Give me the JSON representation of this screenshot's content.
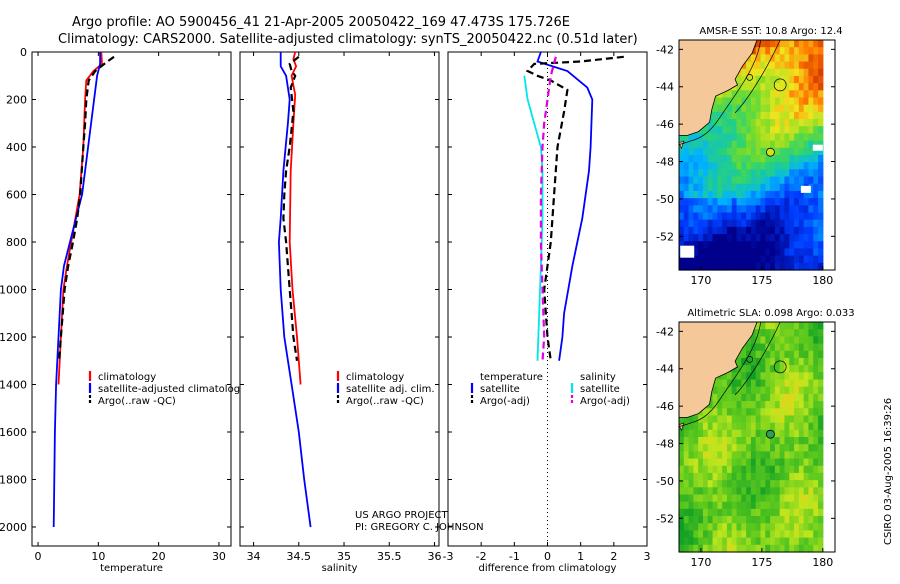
{
  "title_line1": "Argo profile: AO 5900456_41 21-Apr-2005 20050422_169 47.473S 175.726E",
  "title_line2": "Climatology: CARS2000. Satellite-adjusted climatology: synTS_20050422.nc (0.51d later)",
  "project_line1": "US ARGO PROJECT",
  "project_line2": "PI: GREGORY C. JOHNSON",
  "side_stamp": "CSIRO 03-Aug-2005 16:39:26",
  "colors": {
    "red": "#ff0000",
    "blue": "#0000ff",
    "black": "#000000",
    "cyan": "#00e5ee",
    "magenta": "#e000e0",
    "land": "#f5c89a"
  },
  "chart_data": [
    {
      "id": "temperature",
      "type": "line",
      "xlabel": "temperature",
      "ylabel": "",
      "xlim": [
        -1,
        32
      ],
      "ylim": [
        0,
        2080
      ],
      "xticks": [
        0,
        10,
        20,
        30
      ],
      "yticks": [
        0,
        200,
        400,
        600,
        800,
        1000,
        1200,
        1400,
        1600,
        1800,
        2000
      ],
      "legend": [
        "climatology",
        "satellite-adjusted climatology",
        "Argo(..raw -QC)"
      ],
      "series": [
        {
          "name": "climatology",
          "color": "red",
          "dash": false,
          "points": [
            [
              10.5,
              0
            ],
            [
              10.6,
              50
            ],
            [
              9.2,
              80
            ],
            [
              8.0,
              120
            ],
            [
              7.8,
              200
            ],
            [
              7.5,
              400
            ],
            [
              6.9,
              600
            ],
            [
              6.2,
              700
            ],
            [
              5.5,
              800
            ],
            [
              4.8,
              900
            ],
            [
              4.2,
              1000
            ],
            [
              3.8,
              1200
            ],
            [
              3.4,
              1400
            ]
          ]
        },
        {
          "name": "satellite-adjusted climatology",
          "color": "blue",
          "dash": false,
          "points": [
            [
              10.3,
              0
            ],
            [
              10.3,
              50
            ],
            [
              9.8,
              100
            ],
            [
              9.3,
              200
            ],
            [
              8.3,
              400
            ],
            [
              7.3,
              600
            ],
            [
              6.3,
              700
            ],
            [
              5.3,
              800
            ],
            [
              4.3,
              900
            ],
            [
              3.8,
              1000
            ],
            [
              3.4,
              1200
            ],
            [
              3.0,
              1400
            ],
            [
              2.8,
              1600
            ],
            [
              2.7,
              1800
            ],
            [
              2.6,
              2000
            ]
          ]
        },
        {
          "name": "Argo(..raw -QC)",
          "color": "black",
          "dash": true,
          "points": [
            [
              12.6,
              20
            ],
            [
              11.5,
              40
            ],
            [
              9.5,
              80
            ],
            [
              8.4,
              120
            ],
            [
              8.0,
              200
            ],
            [
              7.8,
              300
            ],
            [
              7.5,
              400
            ],
            [
              7.0,
              600
            ],
            [
              6.5,
              700
            ],
            [
              5.8,
              800
            ],
            [
              5.0,
              900
            ],
            [
              4.4,
              1000
            ],
            [
              3.8,
              1200
            ],
            [
              3.5,
              1300
            ]
          ]
        }
      ]
    },
    {
      "id": "salinity",
      "type": "line",
      "xlabel": "salinity",
      "ylabel": "",
      "xlim": [
        33.85,
        36.05
      ],
      "ylim": [
        0,
        2080
      ],
      "xticks": [
        34,
        34.5,
        35,
        35.5,
        36
      ],
      "legend": [
        "climatology",
        "satellite adj. clim.",
        "Argo(..raw -QC)"
      ],
      "series": [
        {
          "name": "climatology",
          "color": "red",
          "dash": false,
          "points": [
            [
              34.46,
              0
            ],
            [
              34.44,
              30
            ],
            [
              34.47,
              60
            ],
            [
              34.42,
              100
            ],
            [
              34.46,
              180
            ],
            [
              34.44,
              300
            ],
            [
              34.41,
              500
            ],
            [
              34.4,
              800
            ],
            [
              34.43,
              1000
            ],
            [
              34.48,
              1200
            ],
            [
              34.52,
              1400
            ]
          ]
        },
        {
          "name": "satellite adj. clim.",
          "color": "blue",
          "dash": false,
          "points": [
            [
              34.3,
              0
            ],
            [
              34.3,
              60
            ],
            [
              34.36,
              100
            ],
            [
              34.4,
              200
            ],
            [
              34.38,
              300
            ],
            [
              34.33,
              500
            ],
            [
              34.3,
              700
            ],
            [
              34.28,
              800
            ],
            [
              34.3,
              1000
            ],
            [
              34.34,
              1200
            ],
            [
              34.42,
              1400
            ],
            [
              34.5,
              1600
            ],
            [
              34.56,
              1800
            ],
            [
              34.63,
              2000
            ]
          ]
        },
        {
          "name": "Argo(..raw -QC)",
          "color": "black",
          "dash": true,
          "points": [
            [
              34.5,
              20
            ],
            [
              34.4,
              50
            ],
            [
              34.42,
              80
            ],
            [
              34.46,
              100
            ],
            [
              34.41,
              150
            ],
            [
              34.44,
              250
            ],
            [
              34.4,
              400
            ],
            [
              34.36,
              500
            ],
            [
              34.34,
              600
            ],
            [
              34.33,
              700
            ],
            [
              34.36,
              800
            ],
            [
              34.4,
              1000
            ],
            [
              34.42,
              1100
            ],
            [
              34.44,
              1200
            ],
            [
              34.48,
              1300
            ]
          ]
        }
      ]
    },
    {
      "id": "difference",
      "type": "line",
      "xlabel": "difference from climatology",
      "ylabel": "",
      "xlim": [
        -3,
        3
      ],
      "ylim": [
        0,
        2080
      ],
      "xticks": [
        -3,
        -2,
        -1,
        0,
        1,
        2,
        3
      ],
      "legend": [
        "temperature",
        "satellite",
        "Argo(-adj)",
        "salinity",
        "satellite",
        "Argo(-adj)"
      ],
      "series": [
        {
          "name": "temperature satellite",
          "color": "blue",
          "dash": false,
          "points": [
            [
              -0.2,
              0
            ],
            [
              -0.3,
              40
            ],
            [
              0.6,
              80
            ],
            [
              1.2,
              150
            ],
            [
              1.35,
              200
            ],
            [
              1.3,
              400
            ],
            [
              1.25,
              500
            ],
            [
              1.05,
              700
            ],
            [
              0.75,
              900
            ],
            [
              0.5,
              1100
            ],
            [
              0.45,
              1200
            ],
            [
              0.35,
              1300
            ]
          ]
        },
        {
          "name": "temperature Argo(-adj)",
          "color": "black",
          "dash": true,
          "points": [
            [
              2.3,
              20
            ],
            [
              1.0,
              40
            ],
            [
              -0.4,
              50
            ],
            [
              -0.6,
              80
            ],
            [
              -0.3,
              100
            ],
            [
              0.1,
              120
            ],
            [
              0.6,
              160
            ],
            [
              0.5,
              250
            ],
            [
              0.3,
              400
            ],
            [
              0.2,
              600
            ],
            [
              0.1,
              800
            ],
            [
              -0.1,
              1000
            ],
            [
              0.0,
              1200
            ],
            [
              0.1,
              1300
            ]
          ]
        },
        {
          "name": "salinity satellite",
          "color": "cyan",
          "dash": false,
          "points": [
            [
              -0.7,
              100
            ],
            [
              -0.6,
              200
            ],
            [
              -0.4,
              300
            ],
            [
              -0.2,
              400
            ],
            [
              -0.15,
              500
            ],
            [
              -0.15,
              700
            ],
            [
              -0.2,
              900
            ],
            [
              -0.25,
              1100
            ],
            [
              -0.3,
              1300
            ]
          ]
        },
        {
          "name": "salinity Argo(-adj)",
          "color": "magenta",
          "dash": true,
          "points": [
            [
              0.25,
              20
            ],
            [
              0.1,
              100
            ],
            [
              -0.1,
              300
            ],
            [
              -0.15,
              400
            ],
            [
              -0.2,
              600
            ],
            [
              -0.2,
              800
            ],
            [
              -0.15,
              1000
            ],
            [
              -0.1,
              1200
            ],
            [
              -0.15,
              1300
            ]
          ]
        }
      ]
    },
    {
      "id": "sst_map",
      "type": "heatmap",
      "title": "AMSR-E SST: 10.8 Argo: 12.4",
      "xlim": [
        168.2,
        181
      ],
      "ylim": [
        -53.8,
        -41.5
      ],
      "xticks": [
        170,
        175,
        180
      ],
      "yticks": [
        -42,
        -44,
        -46,
        -48,
        -50,
        -52
      ],
      "argo_position": [
        175.7,
        -47.5
      ],
      "sst_value": 10.8,
      "argo_value": 12.4
    },
    {
      "id": "sla_map",
      "type": "heatmap",
      "title": "Altimetric SLA: 0.098 Argo: 0.033",
      "xlim": [
        168.2,
        181
      ],
      "ylim": [
        -53.8,
        -41.5
      ],
      "xticks": [
        170,
        175,
        180
      ],
      "yticks": [
        -42,
        -44,
        -46,
        -48,
        -50,
        -52
      ],
      "argo_position": [
        175.7,
        -47.5
      ],
      "sla_value": 0.098,
      "argo_value": 0.033
    }
  ]
}
